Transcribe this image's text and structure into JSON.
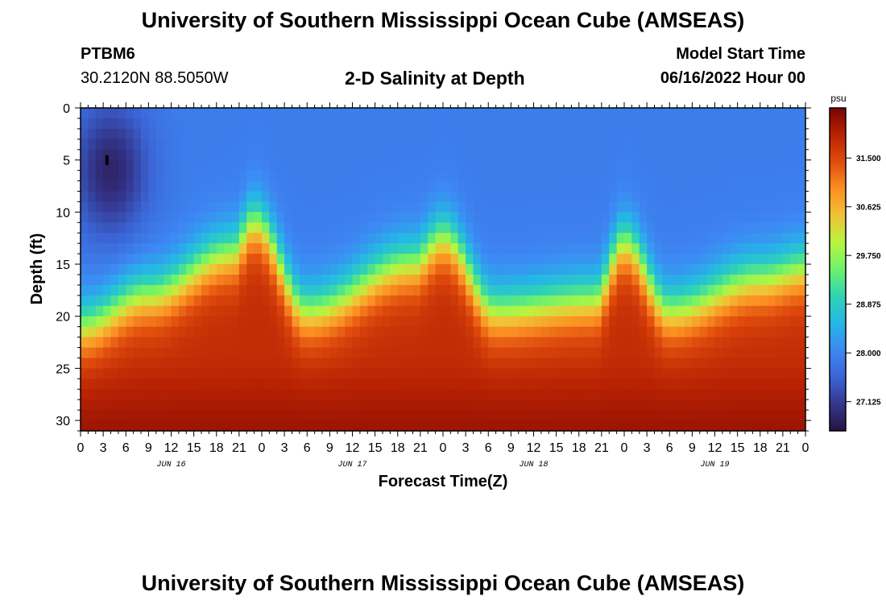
{
  "page": {
    "title_top": "University of Southern Mississippi Ocean Cube (AMSEAS)",
    "title_bottom": "University of Southern Mississippi Ocean Cube (AMSEAS)",
    "station_id": "PTBM6",
    "station_coords": "30.2120N  88.5050W",
    "model_start_label": "Model Start Time",
    "model_start_value": "06/16/2022 Hour 00"
  },
  "colors": {
    "scale": [
      "#2a1143",
      "#33378d",
      "#3b64d5",
      "#3d88f4",
      "#25b7e5",
      "#2fd3b4",
      "#6df26b",
      "#b9f43f",
      "#f1c236",
      "#fb8f22",
      "#e04c0d",
      "#b82203",
      "#7a0403"
    ]
  },
  "chart_data": {
    "type": "heatmap",
    "title": "2-D Salinity at Depth",
    "xlabel": "Forecast Time(Z)",
    "ylabel": "Depth (ft)",
    "colorbar_unit": "psu",
    "x_range_hours": [
      0,
      96
    ],
    "y_range_ft": [
      0,
      31
    ],
    "x_tick_labels": [
      "0",
      "3",
      "6",
      "9",
      "12",
      "15",
      "18",
      "21",
      "0",
      "3",
      "6",
      "9",
      "12",
      "15",
      "18",
      "21",
      "0",
      "3",
      "6",
      "9",
      "12",
      "15",
      "18",
      "21",
      "0",
      "3",
      "6",
      "9",
      "12",
      "15",
      "18",
      "21",
      "0"
    ],
    "y_tick_labels": [
      "0",
      "5",
      "10",
      "15",
      "20",
      "25",
      "30"
    ],
    "y_tick_values": [
      0,
      5,
      10,
      15,
      20,
      25,
      30
    ],
    "date_labels": [
      "JUN 16",
      "JUN 17",
      "JUN 18",
      "JUN 19"
    ],
    "date_label_hours": [
      12,
      36,
      60,
      84
    ],
    "colorbar_range": [
      26.6,
      32.4
    ],
    "colorbar_tick_labels": [
      "31.500",
      "30.625",
      "29.750",
      "28.875",
      "28.000",
      "27.125"
    ],
    "colorbar_tick_values": [
      31.5,
      30.625,
      29.75,
      28.875,
      28.0,
      27.125
    ],
    "halocline_depth_ft": [
      {
        "hour": 0,
        "depth": 21
      },
      {
        "hour": 9,
        "depth": 18
      },
      {
        "hour": 20,
        "depth": 14
      },
      {
        "hour": 23,
        "depth": 11
      },
      {
        "hour": 30,
        "depth": 19.5
      },
      {
        "hour": 44,
        "depth": 15
      },
      {
        "hour": 48,
        "depth": 12.5
      },
      {
        "hour": 55,
        "depth": 19.5
      },
      {
        "hour": 68,
        "depth": 18.5
      },
      {
        "hour": 72,
        "depth": 13
      },
      {
        "hour": 78,
        "depth": 19.5
      },
      {
        "hour": 90,
        "depth": 16.5
      },
      {
        "hour": 96,
        "depth": 15.5
      }
    ],
    "surface_salinity_psu": 27.9,
    "deep_salinity_psu": 31.8,
    "fresh_core": {
      "hour": 4,
      "depth": 6,
      "salinity_psu": 26.9
    },
    "surface_marker": {
      "hour": 3.5,
      "depth": 5
    }
  }
}
